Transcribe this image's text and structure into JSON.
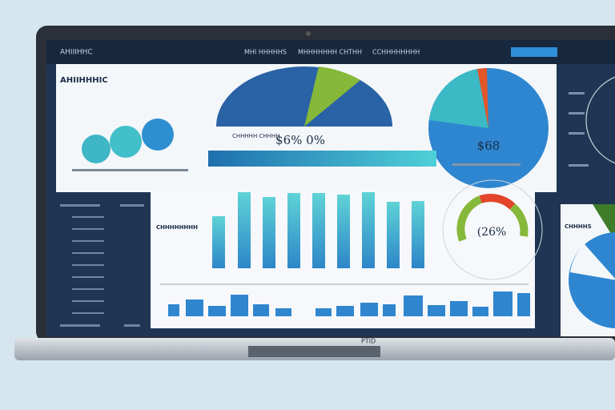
{
  "header": {
    "title": "AHIIIHHC",
    "nav": [
      "MHI HHHHHS",
      "MHHHHHHH CHTHH",
      "CCHHHHHHHH"
    ]
  },
  "panel_top": {
    "title": "AHIIHHHIC",
    "gauge_text": "$6%  0%",
    "gauge_caption": "CHHHHH CHHHH"
  },
  "pie_panel": {
    "value_text": "$68"
  },
  "gauge_panel": {
    "value_text": "(26%"
  },
  "bar_panel": {
    "title": "CHHHHHHHH"
  },
  "corner_panel": {
    "title": "CHHHHS"
  },
  "laptop": {
    "brand": "PTID"
  }
}
